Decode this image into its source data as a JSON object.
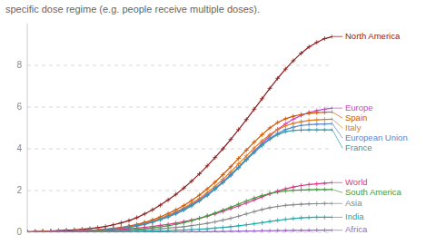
{
  "chart_data": {
    "type": "line",
    "subtitle": "specific dose regime (e.g. people receive multiple doses).",
    "categories": [
      null,
      null,
      null,
      null,
      null,
      null,
      null,
      null,
      null,
      null,
      null,
      null,
      null,
      null,
      null,
      null,
      null,
      null,
      null,
      null,
      null,
      null,
      null,
      null,
      null,
      null,
      null,
      null,
      null,
      null,
      null,
      null,
      null,
      null,
      null,
      null,
      null,
      null,
      null,
      null
    ],
    "ylim": [
      0,
      10
    ],
    "yticks": [
      0,
      2,
      4,
      6,
      8
    ],
    "grid": true,
    "tick_labels": "y",
    "marker": "plus",
    "series": [
      {
        "name": "North America",
        "color": "#8b1a1a",
        "values": [
          0.03,
          0.04,
          0.05,
          0.06,
          0.08,
          0.1,
          0.12,
          0.15,
          0.18,
          0.22,
          0.28,
          0.36,
          0.45,
          0.56,
          0.7,
          0.88,
          1.08,
          1.3,
          1.55,
          1.82,
          2.12,
          2.45,
          2.8,
          3.18,
          3.58,
          4.0,
          4.45,
          4.92,
          5.4,
          5.9,
          6.4,
          6.9,
          7.38,
          7.82,
          8.22,
          8.58,
          8.88,
          9.1,
          9.28,
          9.38
        ]
      },
      {
        "name": "Europe",
        "color": "#cc44cc",
        "values": [
          0.02,
          0.02,
          0.03,
          0.03,
          0.04,
          0.05,
          0.06,
          0.08,
          0.1,
          0.12,
          0.15,
          0.18,
          0.22,
          0.28,
          0.35,
          0.44,
          0.54,
          0.66,
          0.8,
          0.96,
          1.14,
          1.34,
          1.56,
          1.82,
          2.1,
          2.42,
          2.76,
          3.12,
          3.5,
          3.88,
          4.26,
          4.62,
          4.94,
          5.2,
          5.42,
          5.6,
          5.74,
          5.83,
          5.9,
          5.95
        ]
      },
      {
        "name": "Spain",
        "color": "#cc5500",
        "values": [
          0.02,
          0.02,
          0.03,
          0.03,
          0.04,
          0.05,
          0.06,
          0.08,
          0.1,
          0.12,
          0.15,
          0.19,
          0.24,
          0.3,
          0.38,
          0.48,
          0.6,
          0.74,
          0.9,
          1.08,
          1.28,
          1.52,
          1.78,
          2.08,
          2.4,
          2.76,
          3.14,
          3.54,
          3.94,
          4.32,
          4.68,
          5.0,
          5.26,
          5.44,
          5.56,
          5.64,
          5.7,
          5.73,
          5.75,
          5.76
        ]
      },
      {
        "name": "Italy",
        "color": "#e07820",
        "values": [
          0.02,
          0.02,
          0.03,
          0.03,
          0.04,
          0.05,
          0.06,
          0.07,
          0.09,
          0.11,
          0.14,
          0.17,
          0.21,
          0.27,
          0.34,
          0.43,
          0.53,
          0.66,
          0.81,
          0.98,
          1.16,
          1.38,
          1.62,
          1.9,
          2.2,
          2.54,
          2.9,
          3.28,
          3.66,
          4.04,
          4.38,
          4.68,
          4.92,
          5.1,
          5.22,
          5.3,
          5.36,
          5.39,
          5.41,
          5.42
        ]
      },
      {
        "name": "European Union",
        "color": "#5588cc",
        "values": [
          0.01,
          0.02,
          0.02,
          0.03,
          0.03,
          0.04,
          0.05,
          0.06,
          0.08,
          0.1,
          0.13,
          0.16,
          0.2,
          0.25,
          0.32,
          0.4,
          0.5,
          0.62,
          0.76,
          0.92,
          1.1,
          1.3,
          1.53,
          1.8,
          2.1,
          2.42,
          2.76,
          3.12,
          3.5,
          3.86,
          4.2,
          4.5,
          4.74,
          4.92,
          5.04,
          5.12,
          5.16,
          5.18,
          5.19,
          5.2
        ]
      },
      {
        "name": "France",
        "color": "#3399aa",
        "values": [
          0.01,
          0.01,
          0.02,
          0.02,
          0.03,
          0.04,
          0.05,
          0.06,
          0.07,
          0.09,
          0.12,
          0.15,
          0.18,
          0.23,
          0.3,
          0.38,
          0.48,
          0.6,
          0.73,
          0.88,
          1.06,
          1.26,
          1.5,
          1.76,
          2.06,
          2.38,
          2.72,
          3.08,
          3.46,
          3.82,
          4.16,
          4.46,
          4.68,
          4.82,
          4.88,
          4.9,
          4.91,
          4.91,
          4.91,
          4.91
        ]
      },
      {
        "name": "World",
        "color": "#dd3388",
        "values": [
          0.01,
          0.02,
          0.02,
          0.03,
          0.03,
          0.04,
          0.05,
          0.06,
          0.07,
          0.08,
          0.1,
          0.12,
          0.14,
          0.17,
          0.2,
          0.24,
          0.28,
          0.33,
          0.38,
          0.44,
          0.51,
          0.58,
          0.67,
          0.77,
          0.88,
          1.0,
          1.13,
          1.26,
          1.4,
          1.55,
          1.7,
          1.84,
          1.97,
          2.08,
          2.17,
          2.24,
          2.29,
          2.32,
          2.35,
          2.38
        ]
      },
      {
        "name": "South America",
        "color": "#449944",
        "values": [
          0.01,
          0.01,
          0.01,
          0.02,
          0.02,
          0.02,
          0.03,
          0.03,
          0.04,
          0.05,
          0.06,
          0.07,
          0.09,
          0.11,
          0.14,
          0.17,
          0.21,
          0.26,
          0.31,
          0.38,
          0.46,
          0.56,
          0.67,
          0.79,
          0.92,
          1.06,
          1.2,
          1.35,
          1.5,
          1.64,
          1.76,
          1.86,
          1.93,
          1.98,
          2.01,
          2.03,
          2.04,
          2.05,
          2.05,
          2.05
        ]
      },
      {
        "name": "Asia",
        "color": "#888888",
        "values": [
          0.01,
          0.01,
          0.01,
          0.01,
          0.02,
          0.02,
          0.02,
          0.03,
          0.03,
          0.04,
          0.05,
          0.06,
          0.07,
          0.08,
          0.1,
          0.12,
          0.14,
          0.17,
          0.2,
          0.23,
          0.27,
          0.32,
          0.37,
          0.43,
          0.5,
          0.58,
          0.67,
          0.77,
          0.88,
          0.99,
          1.09,
          1.18,
          1.24,
          1.29,
          1.32,
          1.34,
          1.36,
          1.37,
          1.38,
          1.38
        ]
      },
      {
        "name": "India",
        "color": "#22aaaa",
        "values": [
          0.0,
          0.0,
          0.0,
          0.01,
          0.01,
          0.01,
          0.01,
          0.01,
          0.02,
          0.02,
          0.02,
          0.03,
          0.03,
          0.04,
          0.05,
          0.05,
          0.06,
          0.07,
          0.08,
          0.1,
          0.11,
          0.13,
          0.15,
          0.17,
          0.2,
          0.23,
          0.27,
          0.31,
          0.36,
          0.41,
          0.46,
          0.52,
          0.57,
          0.62,
          0.66,
          0.69,
          0.71,
          0.72,
          0.72,
          0.72
        ]
      },
      {
        "name": "Africa",
        "color": "#9966cc",
        "values": [
          0.0,
          0.0,
          0.0,
          0.0,
          0.0,
          0.0,
          0.0,
          0.01,
          0.01,
          0.01,
          0.01,
          0.01,
          0.01,
          0.01,
          0.01,
          0.02,
          0.02,
          0.02,
          0.02,
          0.02,
          0.03,
          0.03,
          0.03,
          0.03,
          0.04,
          0.04,
          0.05,
          0.05,
          0.06,
          0.06,
          0.07,
          0.07,
          0.08,
          0.08,
          0.09,
          0.09,
          0.09,
          0.1,
          0.1,
          0.1
        ]
      }
    ]
  }
}
